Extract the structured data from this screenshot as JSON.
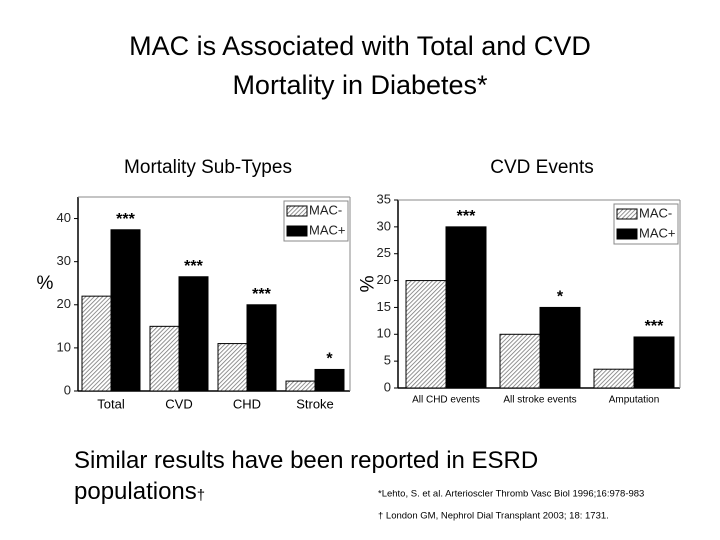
{
  "slide": {
    "title_lines": [
      "MAC is Associated with Total and CVD",
      "Mortality in Diabetes*"
    ],
    "body_text": "Similar results have been reported in ESRD populations",
    "body_mark": "†",
    "footnotes": [
      "*Lehto, S. et al. Arterioscler Thromb Vasc Biol 1996;16:978-983",
      "† London GM, Nephrol Dial Transplant 2003; 18: 1731."
    ]
  },
  "chart_data": [
    {
      "type": "bar",
      "title": "Mortality Sub-Types",
      "y_label": "%",
      "categories": [
        "Total",
        "CVD",
        "CHD",
        "Stroke"
      ],
      "series": [
        {
          "name": "MAC-",
          "color": "#9a9a9a",
          "hatch": true,
          "values": [
            22,
            15,
            11,
            2.3
          ]
        },
        {
          "name": "MAC+",
          "color": "#000000",
          "hatch": false,
          "values": [
            37.4,
            26.5,
            20,
            5
          ]
        }
      ],
      "annotations": [
        "***",
        "***",
        "***",
        "*"
      ],
      "ylim": [
        0,
        45
      ],
      "yticks": [
        0,
        10,
        20,
        30,
        40
      ],
      "legend": "upper right"
    },
    {
      "type": "bar",
      "title": "CVD Events",
      "y_label": "%",
      "categories": [
        "All CHD events",
        "All stroke events",
        "Amputation"
      ],
      "series": [
        {
          "name": "MAC-",
          "color": "#9a9a9a",
          "hatch": true,
          "values": [
            20,
            10,
            3.5
          ]
        },
        {
          "name": "MAC+",
          "color": "#000000",
          "hatch": false,
          "values": [
            30,
            15,
            9.5
          ]
        }
      ],
      "annotations": [
        "***",
        "*",
        "***"
      ],
      "ylim": [
        0,
        35
      ],
      "yticks": [
        0,
        5,
        10,
        15,
        20,
        25,
        30,
        35
      ],
      "legend": "upper right"
    }
  ]
}
